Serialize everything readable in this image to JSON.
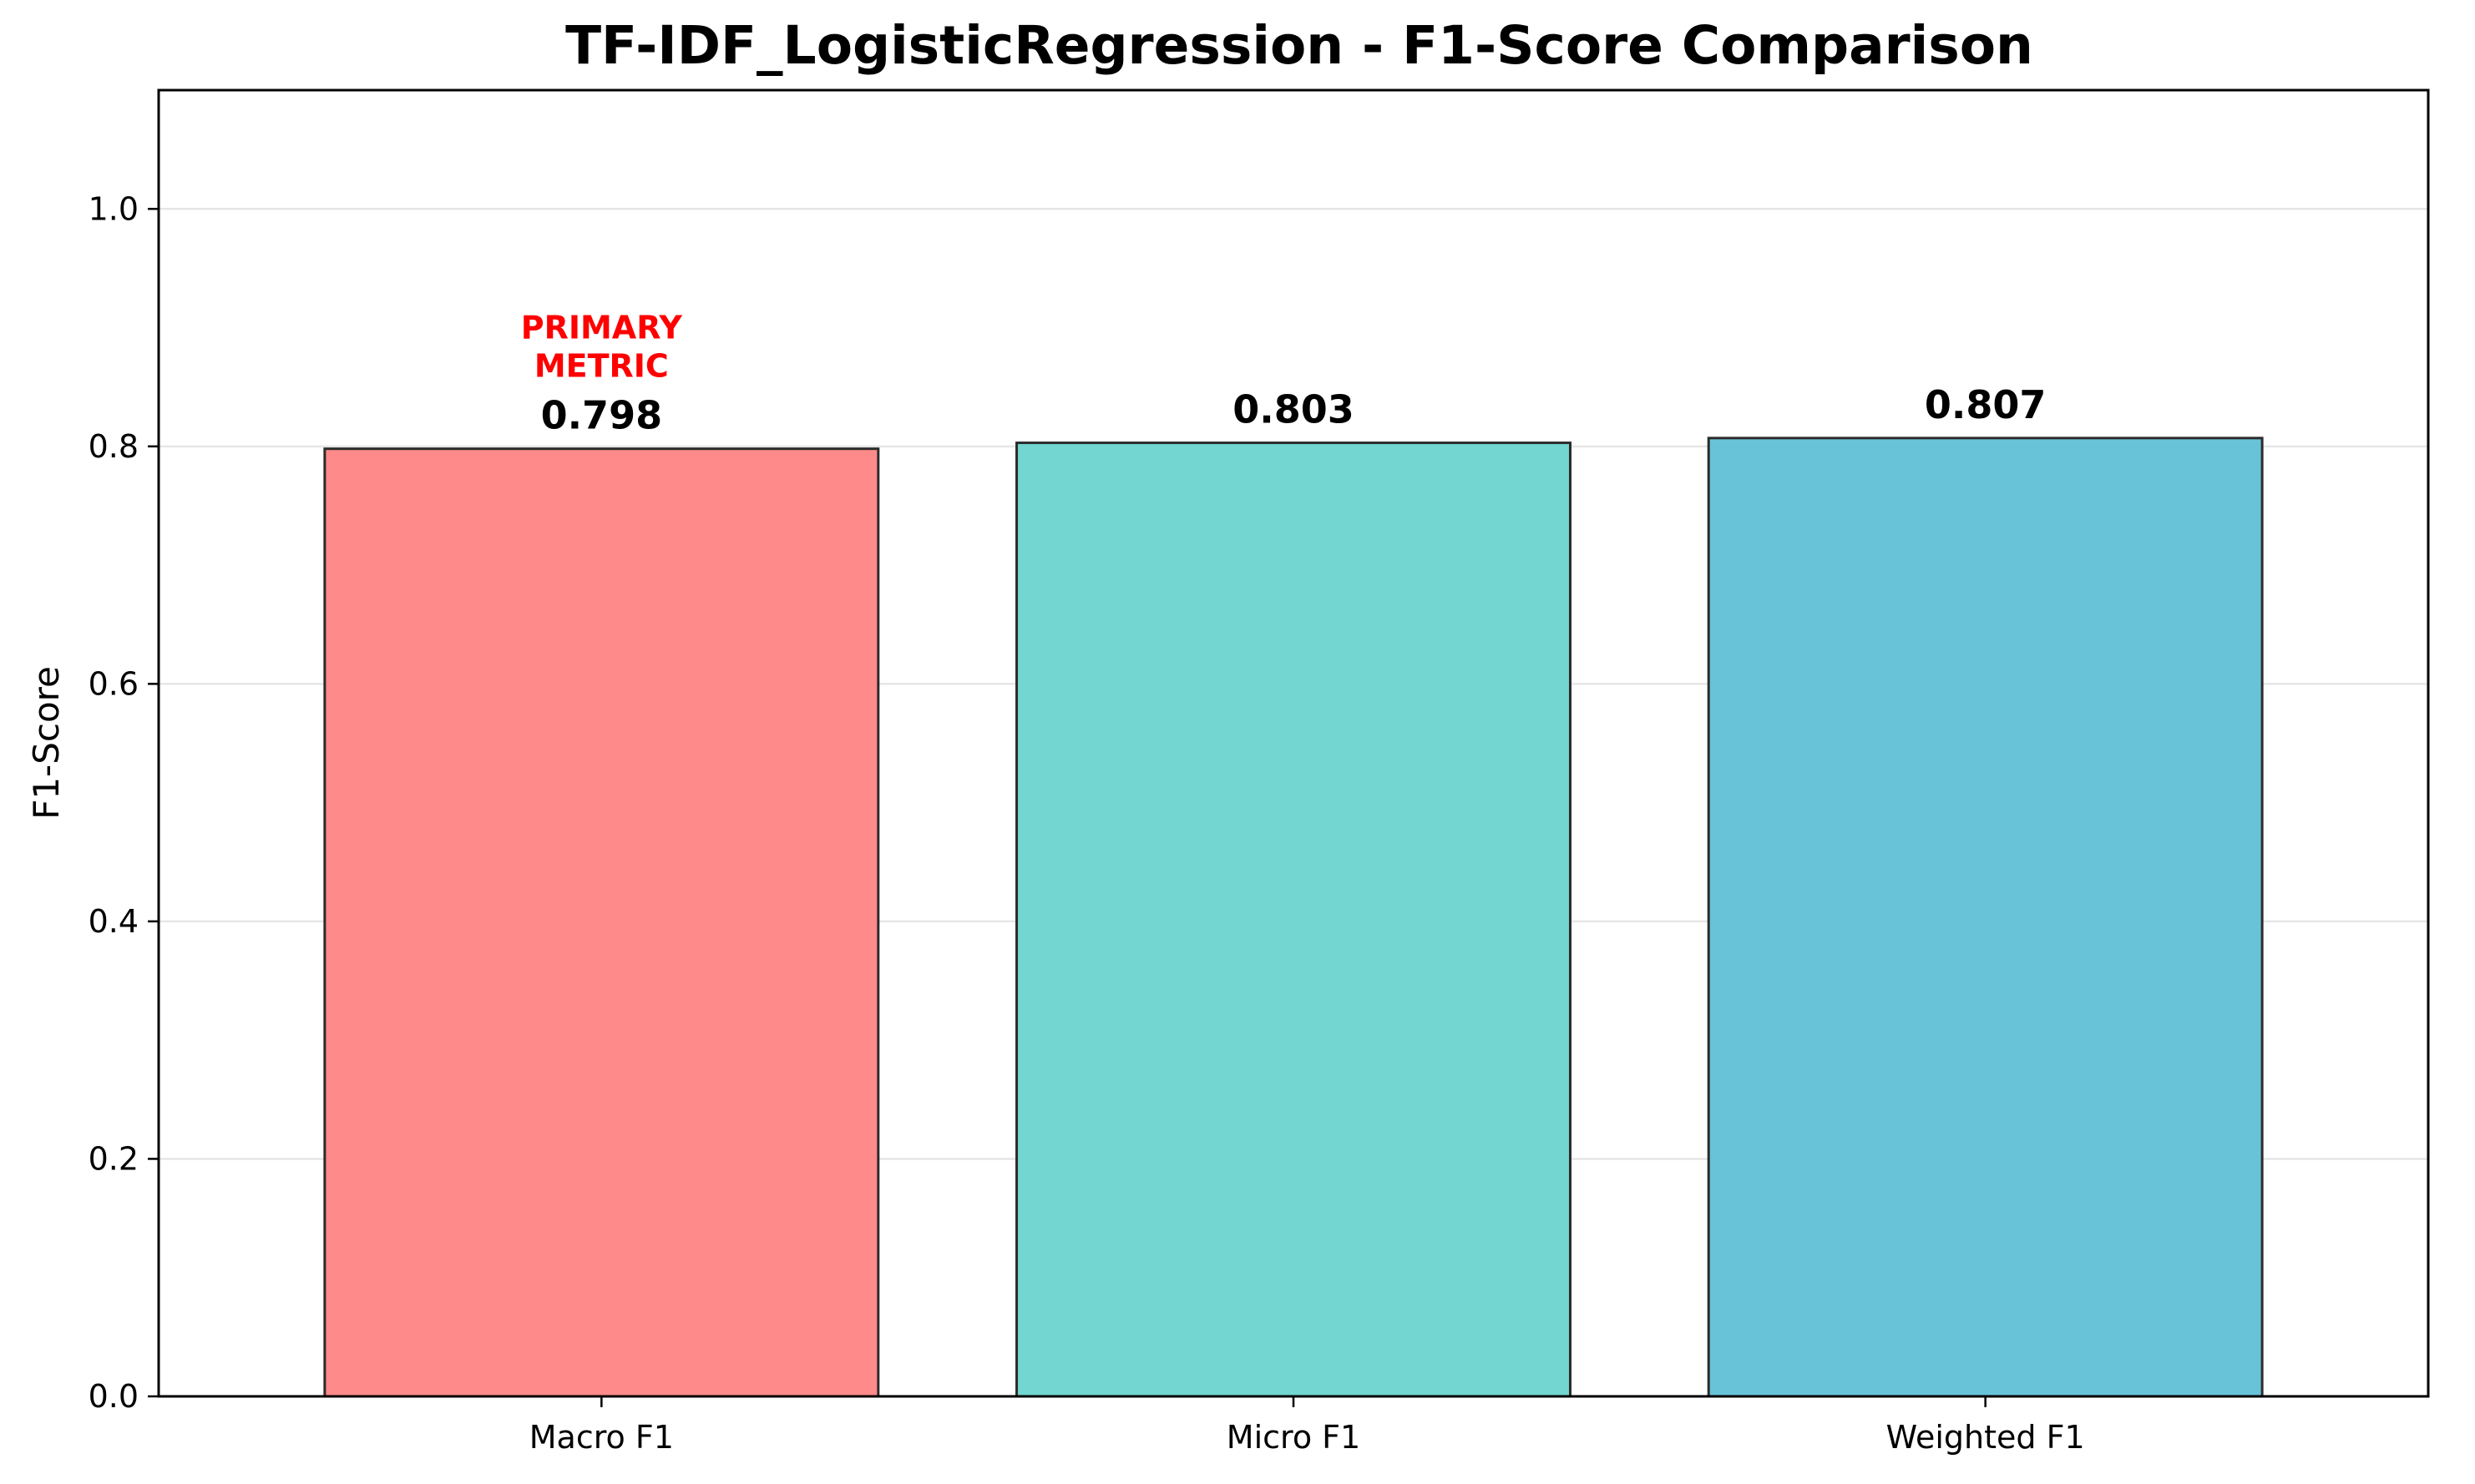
{
  "chart_data": {
    "type": "bar",
    "title": "TF-IDF_LogisticRegression - F1-Score Comparison",
    "xlabel": "",
    "ylabel": "F1-Score",
    "categories": [
      "Macro F1",
      "Micro F1",
      "Weighted F1"
    ],
    "values": [
      0.798,
      0.803,
      0.807
    ],
    "value_labels": [
      "0.798",
      "0.803",
      "0.807"
    ],
    "bar_colors": [
      "#FF8A8A",
      "#73D6D0",
      "#68C3D8"
    ],
    "edge_color": "#2b2b2b",
    "ylim": [
      0,
      1.1
    ],
    "yticks": [
      0.0,
      0.2,
      0.4,
      0.6,
      0.8,
      1.0
    ],
    "ytick_labels": [
      "0.0",
      "0.2",
      "0.4",
      "0.6",
      "0.8",
      "1.0"
    ],
    "grid": true,
    "grid_axis": "y",
    "annotation": {
      "category": "Macro F1",
      "lines": [
        "PRIMARY",
        "METRIC"
      ],
      "color": "#FF0000"
    }
  }
}
